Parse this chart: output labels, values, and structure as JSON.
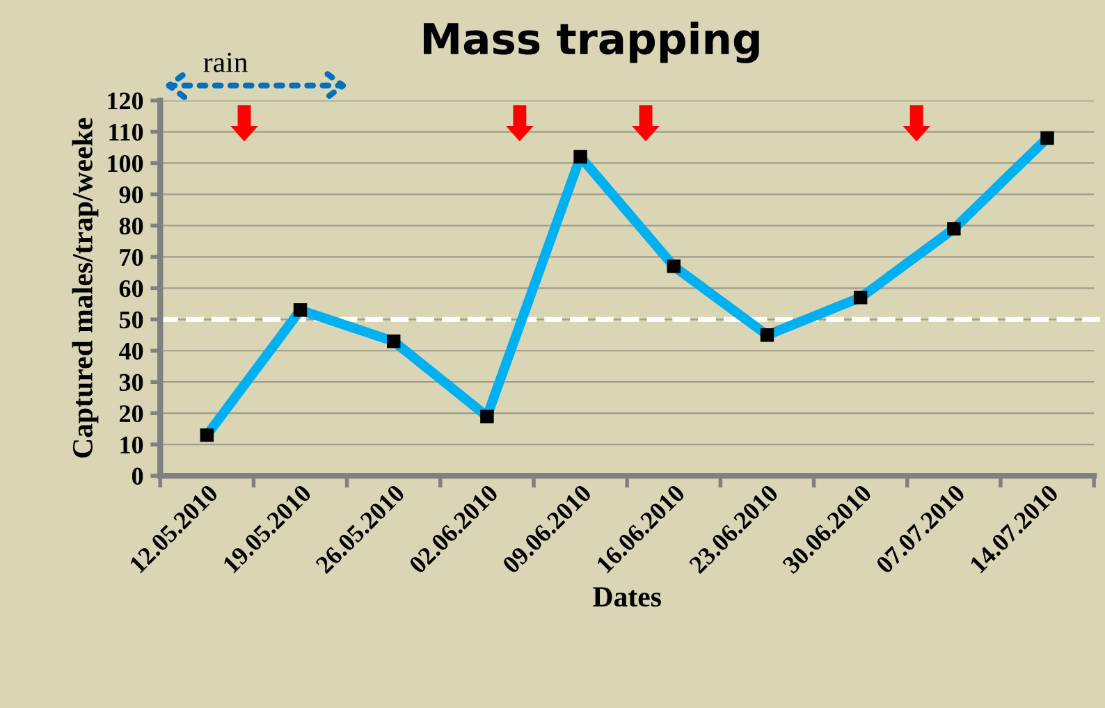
{
  "chart_data": {
    "type": "line",
    "title": "Mass trapping",
    "xlabel": "Dates",
    "ylabel": "Captured males/trap/weeke",
    "categories": [
      "12.05.2010",
      "19.05.2010",
      "26.05.2010",
      "02.06.2010",
      "09.06.2010",
      "16.06.2010",
      "23.06.2010",
      "30.06.2010",
      "07.07.2010",
      "14.07.2010"
    ],
    "series": [
      {
        "color": "#00b0f0",
        "values": [
          13,
          53,
          43,
          19,
          102,
          67,
          45,
          57,
          79,
          108
        ]
      }
    ],
    "ylim": [
      0,
      120
    ],
    "yticks": [
      0,
      10,
      20,
      30,
      40,
      50,
      60,
      70,
      80,
      90,
      100,
      110,
      120
    ],
    "ref_lines": [
      {
        "axis": "y",
        "value": 50,
        "color": "#ffffff",
        "line_style": "dashed"
      }
    ],
    "annotations": [
      "rain"
    ],
    "grid": "y",
    "marker": "square",
    "line_style": "solid",
    "legend": false
  }
}
